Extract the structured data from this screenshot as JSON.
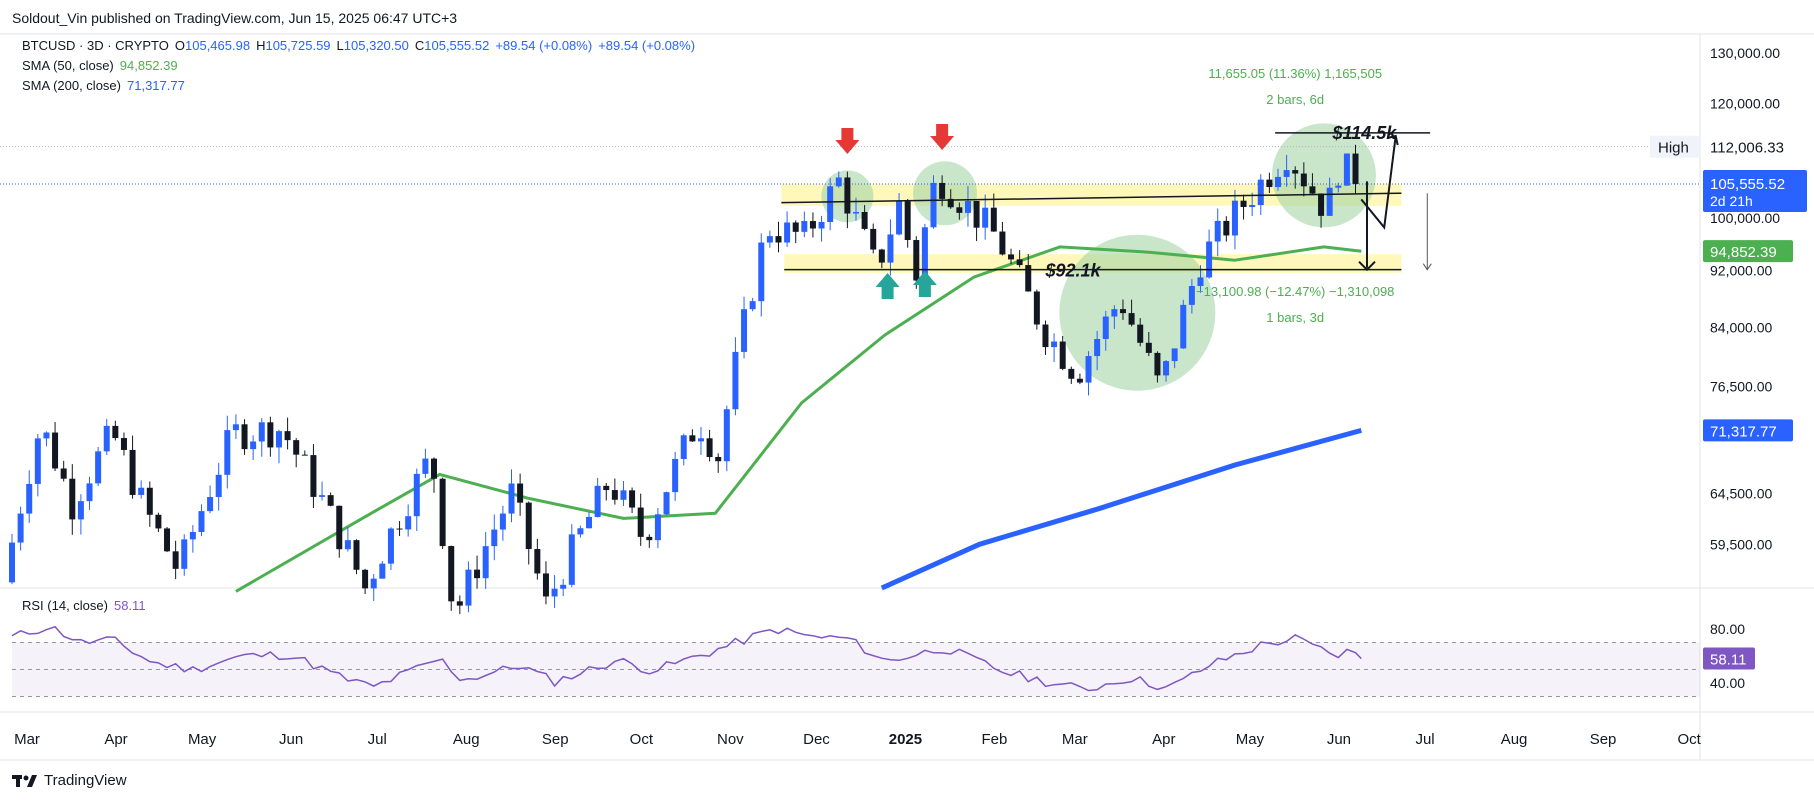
{
  "header": {
    "publisher": "Soldout_Vin published on TradingView.com, Jun 15, 2025 06:47 UTC+3",
    "symbol": "BTCUSD · 3D · CRYPTO",
    "ohlc": {
      "o_label": "O",
      "o": "105,465.98",
      "h_label": "H",
      "h": "105,725.59",
      "l_label": "L",
      "l": "105,320.50",
      "c_label": "C",
      "c": "105,555.52",
      "change": "+89.54 (+0.08%)",
      "change2": "+89.54 (+0.08%)"
    },
    "sma50_label": "SMA (50, close)",
    "sma50_value": "94,852.39",
    "sma200_label": "SMA (200, close)",
    "sma200_value": "71,317.77",
    "rsi_label": "RSI (14, close)",
    "rsi_value": "58.11"
  },
  "footer": {
    "brand": "TradingView"
  },
  "price_axis": {
    "ticks": [
      "130,000.00",
      "120,000.00",
      "112,000.00",
      "100,000.00",
      "92,000.00",
      "84,000.00",
      "76,500.00",
      "64,500.00",
      "59,500.00"
    ],
    "high_label": "High",
    "high_value": "112,006.33",
    "current_value": "105,555.52",
    "current_countdown": "2d 21h",
    "sma50_tag": "94,852.39",
    "sma200_tag": "71,317.77"
  },
  "rsi_axis": {
    "ticks": [
      "80.00",
      "40.00"
    ],
    "current": "58.11"
  },
  "time_axis": [
    "Mar",
    "Apr",
    "May",
    "Jun",
    "Jul",
    "Aug",
    "Sep",
    "Oct",
    "Nov",
    "Dec",
    "2025",
    "Feb",
    "Mar",
    "Apr",
    "May",
    "Jun",
    "Jul",
    "Aug",
    "Sep",
    "Oct"
  ],
  "annotations": {
    "target_label": "$114.5k",
    "support_label": "$92.1k",
    "up_measure_line1": "11,655.05 (11.36%) 1,165,505",
    "up_measure_line2": "2 bars, 6d",
    "down_measure_line1": "−13,100.98 (−12.47%) −1,310,098",
    "down_measure_line2": "1 bars, 3d"
  },
  "colors": {
    "up": "#2962ff",
    "down": "#131722",
    "sma50": "#4caf50",
    "sma200": "#2962ff",
    "rsi": "#7e57c2",
    "highlight_zone": "#fff59d",
    "circle": "#a5d6a7",
    "arrow_down": "#e53935",
    "arrow_up": "#26a69a"
  },
  "chart_data": {
    "type": "candlestick",
    "title": "BTCUSD · 3D · CRYPTO",
    "y_scale": "log",
    "ylim": [
      55500,
      134000
    ],
    "x_range": [
      "2024-03-01",
      "2025-10-10"
    ],
    "key_levels": {
      "resistance": 103500,
      "support": 92100,
      "target": 114500
    },
    "current_price": 105555.52,
    "series_sma50_end": 94852.39,
    "series_sma200_end": 71317.77,
    "price_path": [
      [
        "2024-03-01",
        56000
      ],
      [
        "2024-03-14",
        72000
      ],
      [
        "2024-03-25",
        63500
      ],
      [
        "2024-04-08",
        71000
      ],
      [
        "2024-04-19",
        63000
      ],
      [
        "2024-05-01",
        57000
      ],
      [
        "2024-05-20",
        71000
      ],
      [
        "2024-06-06",
        71500
      ],
      [
        "2024-06-25",
        61000
      ],
      [
        "2024-07-05",
        55500
      ],
      [
        "2024-07-28",
        68500
      ],
      [
        "2024-08-05",
        53000
      ],
      [
        "2024-08-25",
        64500
      ],
      [
        "2024-09-06",
        54000
      ],
      [
        "2024-09-28",
        65800
      ],
      [
        "2024-10-10",
        60000
      ],
      [
        "2024-10-29",
        72500
      ],
      [
        "2024-11-05",
        68500
      ],
      [
        "2024-11-22",
        98500
      ],
      [
        "2024-12-05",
        97000
      ],
      [
        "2024-12-17",
        106000
      ],
      [
        "2024-12-30",
        92000
      ],
      [
        "2025-01-07",
        102000
      ],
      [
        "2025-01-13",
        91500
      ],
      [
        "2025-01-20",
        107000
      ],
      [
        "2025-02-10",
        97000
      ],
      [
        "2025-02-26",
        84000
      ],
      [
        "2025-03-10",
        78000
      ],
      [
        "2025-03-25",
        88000
      ],
      [
        "2025-04-08",
        76000
      ],
      [
        "2025-04-22",
        93500
      ],
      [
        "2025-05-10",
        104000
      ],
      [
        "2025-05-22",
        111000
      ],
      [
        "2025-06-05",
        101000
      ],
      [
        "2025-06-10",
        110000
      ],
      [
        "2025-06-14",
        105555
      ]
    ],
    "sma50": [
      [
        "2024-05-18",
        55200
      ],
      [
        "2024-07-01",
        62000
      ],
      [
        "2024-07-28",
        66500
      ],
      [
        "2024-08-28",
        64000
      ],
      [
        "2024-09-30",
        62000
      ],
      [
        "2024-11-01",
        62500
      ],
      [
        "2024-12-01",
        74500
      ],
      [
        "2024-12-30",
        83000
      ],
      [
        "2025-01-30",
        91000
      ],
      [
        "2025-03-01",
        95500
      ],
      [
        "2025-04-01",
        94700
      ],
      [
        "2025-05-01",
        93500
      ],
      [
        "2025-06-01",
        95500
      ],
      [
        "2025-06-14",
        94852
      ]
    ],
    "sma200": [
      [
        "2024-12-29",
        55500
      ],
      [
        "2025-02-01",
        59500
      ],
      [
        "2025-03-15",
        63000
      ],
      [
        "2025-05-01",
        67500
      ],
      [
        "2025-06-14",
        71318
      ]
    ],
    "rsi": {
      "ylim": [
        20,
        100
      ],
      "overbought": 70,
      "oversold": 30,
      "values": [
        [
          "2024-03-01",
          74
        ],
        [
          "2024-03-14",
          82
        ],
        [
          "2024-03-25",
          70
        ],
        [
          "2024-04-05",
          72
        ],
        [
          "2024-04-19",
          55
        ],
        [
          "2024-05-03",
          50
        ],
        [
          "2024-05-20",
          60
        ],
        [
          "2024-06-06",
          61
        ],
        [
          "2024-06-25",
          43
        ],
        [
          "2024-07-05",
          37
        ],
        [
          "2024-07-28",
          58
        ],
        [
          "2024-08-05",
          42
        ],
        [
          "2024-08-25",
          53
        ],
        [
          "2024-09-06",
          41
        ],
        [
          "2024-09-28",
          57
        ],
        [
          "2024-10-10",
          49
        ],
        [
          "2024-10-29",
          62
        ],
        [
          "2024-11-22",
          80
        ],
        [
          "2024-12-05",
          74
        ],
        [
          "2024-12-17",
          73
        ],
        [
          "2024-12-30",
          56
        ],
        [
          "2025-01-20",
          66
        ],
        [
          "2025-02-10",
          48
        ],
        [
          "2025-02-26",
          40
        ],
        [
          "2025-03-10",
          35
        ],
        [
          "2025-03-25",
          44
        ],
        [
          "2025-04-08",
          36
        ],
        [
          "2025-04-22",
          53
        ],
        [
          "2025-05-10",
          68
        ],
        [
          "2025-05-22",
          73
        ],
        [
          "2025-06-05",
          60
        ],
        [
          "2025-06-10",
          64
        ],
        [
          "2025-06-14",
          58.11
        ]
      ]
    }
  }
}
